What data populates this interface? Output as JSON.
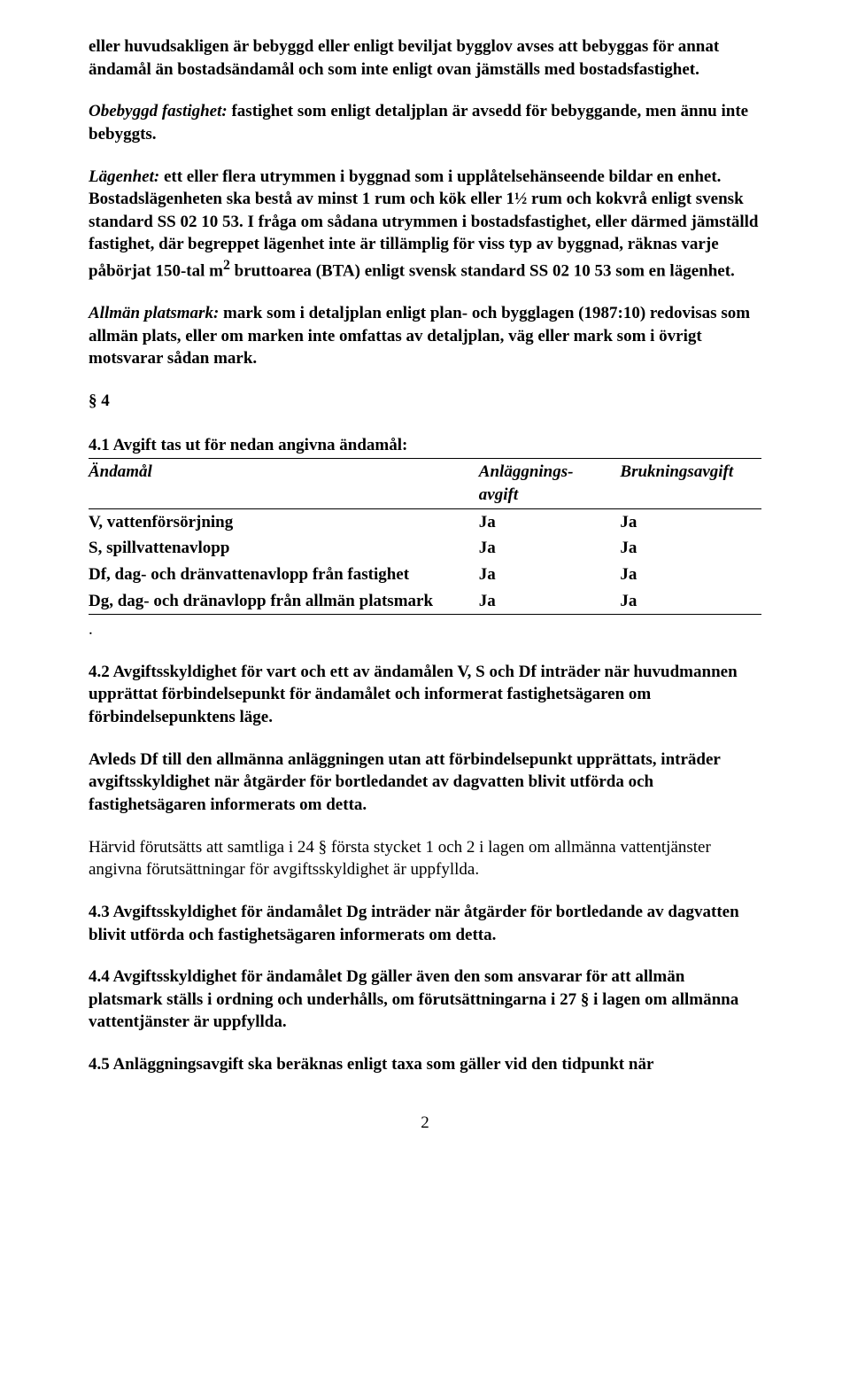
{
  "p1_a": "eller huvudsakligen är bebyggd eller enligt beviljat bygglov avses att bebyggas för annat ändamål än bostadsändamål och som inte enligt ovan jämställs med bostadsfastighet.",
  "p2_term": "Obebyggd fastighet:",
  "p2_rest": " fastighet som enligt detaljplan är avsedd för bebyggande, men ännu inte bebyggts.",
  "p3_term": "Lägenhet:",
  "p3_rest": " ett eller flera utrymmen i byggnad som i upplåtelsehänseende bildar en enhet. Bostadslägenheten ska bestå av minst 1 rum och kök eller 1½ rum och kokvrå enligt svensk standard SS 02 10 53. I fråga om sådana utrymmen i bostadsfastighet, eller därmed jämställd fastighet, där begreppet lägenhet inte är tillämplig för viss typ av byggnad, räknas varje påbörjat 150-tal m",
  "p3_sup": "2",
  "p3_after": " bruttoarea (BTA) enligt svensk standard SS 02 10 53 som en lägenhet.",
  "p4_term": "Allmän platsmark:",
  "p4_rest": " mark som i detaljplan enligt plan- och bygglagen (1987:10) redovisas som allmän plats, eller om marken inte omfattas av detaljplan, väg eller mark som i övrigt motsvarar sådan mark.",
  "section4": "§ 4",
  "table": {
    "caption": "4.1 Avgift tas ut för nedan angivna ändamål:",
    "headers": [
      "Ändamål",
      "Anläggnings-avgift",
      "Brukningsavgift"
    ],
    "rows": [
      [
        "V, vattenförsörjning",
        "Ja",
        "Ja"
      ],
      [
        "S, spillvattenavlopp",
        "Ja",
        "Ja"
      ],
      [
        "Df, dag- och dränvattenavlopp från fastighet",
        "Ja",
        "Ja"
      ],
      [
        "Dg, dag- och dränavlopp från allmän platsmark",
        "Ja",
        "Ja"
      ]
    ]
  },
  "dot": ".",
  "p42_a": "4.2 Avgiftsskyldighet för vart och ett av ändamålen V, S och Df inträder när huvudmannen upprättat förbindelsepunkt för ändamålet och informerat fastighetsägaren om förbindelsepunktens läge.",
  "p42_b": "Avleds Df till den allmänna anläggningen utan att förbindelsepunkt upprättats, inträder avgiftsskyldighet när åtgärder för bortledandet av dagvatten blivit utförda och fastighetsägaren informerats om detta.",
  "p42_c": "Härvid förutsätts att samtliga i 24 § första stycket 1 och 2 i lagen om allmänna vattentjänster angivna förutsättningar för avgiftsskyldighet är uppfyllda.",
  "p43": "4.3 Avgiftsskyldighet för ändamålet Dg inträder när åtgärder för bortledande av dagvatten blivit utförda och fastighetsägaren informerats om detta.",
  "p44": "4.4 Avgiftsskyldighet för ändamålet Dg gäller även den som ansvarar för att allmän platsmark ställs i ordning och underhålls, om förutsättningarna i 27 § i lagen om allmänna vattentjänster är uppfyllda.",
  "p45": "4.5 Anläggningsavgift ska beräknas enligt taxa som gäller vid den tidpunkt när",
  "page_number": "2"
}
